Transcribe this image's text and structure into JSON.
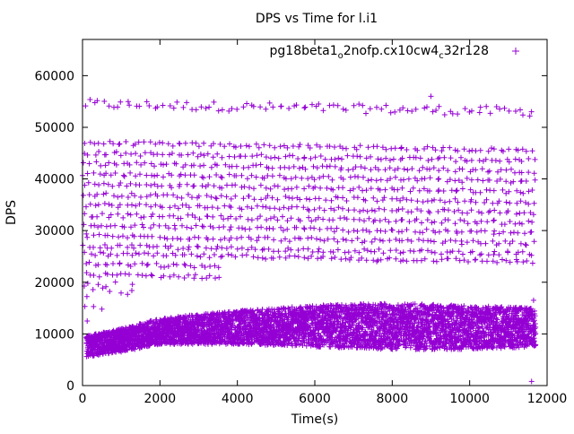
{
  "chart_data": {
    "type": "scatter",
    "title": "DPS vs Time for l.i1",
    "xlabel": "Time(s)",
    "ylabel": "DPS",
    "xlim": [
      0,
      12000
    ],
    "ylim": [
      0,
      67000
    ],
    "xticks": [
      0,
      2000,
      4000,
      6000,
      8000,
      10000,
      12000
    ],
    "yticks": [
      0,
      10000,
      20000,
      30000,
      40000,
      50000,
      60000
    ],
    "xtick_labels": [
      "0",
      "2000",
      "4000",
      "6000",
      "8000",
      "10000",
      "12000"
    ],
    "ytick_labels": [
      "0",
      "10000",
      "20000",
      "30000",
      "40000",
      "50000",
      "60000"
    ],
    "grid": false,
    "legend": {
      "placement": "top-right",
      "label_main": "pg18beta1",
      "label_sub1": "o",
      "label_mid": "2nofp.cx10cw4",
      "label_sub2": "c",
      "label_end": "32r128"
    },
    "marker": "plus",
    "series": [
      {
        "name": "pg18beta1_o2nofp.cx10cw4_c32r128",
        "color": "#9400d3",
        "x_range": [
          0,
          11700
        ],
        "bands": [
          {
            "y_center": 54500,
            "spread": 900,
            "x_range": [
              0,
              11700
            ]
          },
          {
            "y_center": 47000,
            "spread": 400,
            "x_range": [
              0,
              11700
            ]
          },
          {
            "y_center": 45000,
            "spread": 400,
            "x_range": [
              0,
              11700
            ]
          },
          {
            "y_center": 43000,
            "spread": 400,
            "x_range": [
              0,
              11700
            ]
          },
          {
            "y_center": 41000,
            "spread": 400,
            "x_range": [
              0,
              11700
            ]
          },
          {
            "y_center": 39000,
            "spread": 400,
            "x_range": [
              0,
              11700
            ]
          },
          {
            "y_center": 37000,
            "spread": 400,
            "x_range": [
              0,
              11700
            ]
          },
          {
            "y_center": 35000,
            "spread": 400,
            "x_range": [
              0,
              11700
            ]
          },
          {
            "y_center": 33000,
            "spread": 400,
            "x_range": [
              0,
              11700
            ]
          },
          {
            "y_center": 31000,
            "spread": 400,
            "x_range": [
              0,
              11700
            ]
          },
          {
            "y_center": 29000,
            "spread": 400,
            "x_range": [
              0,
              11700
            ]
          },
          {
            "y_center": 27000,
            "spread": 400,
            "x_range": [
              0,
              11700
            ]
          },
          {
            "y_center": 25500,
            "spread": 400,
            "x_range": [
              0,
              11700
            ]
          },
          {
            "y_center": 23500,
            "spread": 400,
            "x_range": [
              0,
              3600
            ]
          },
          {
            "y_center": 21500,
            "spread": 400,
            "x_range": [
              0,
              3600
            ]
          },
          {
            "y_center": 19000,
            "spread": 1500,
            "x_range": [
              0,
              1400
            ]
          },
          {
            "y_center": 16000,
            "spread": 1500,
            "x_range": [
              0,
              300
            ]
          }
        ],
        "low_band": [
          {
            "x": 0,
            "y_low": 5500,
            "y_high": 9500
          },
          {
            "x": 1000,
            "y_low": 6500,
            "y_high": 11000
          },
          {
            "x": 2000,
            "y_low": 8000,
            "y_high": 13000
          },
          {
            "x": 4000,
            "y_low": 8000,
            "y_high": 14500
          },
          {
            "x": 6000,
            "y_low": 7500,
            "y_high": 15500
          },
          {
            "x": 8000,
            "y_low": 7000,
            "y_high": 16000
          },
          {
            "x": 10000,
            "y_low": 7000,
            "y_high": 15500
          },
          {
            "x": 11700,
            "y_low": 7500,
            "y_high": 15000
          }
        ],
        "outliers": [
          {
            "x": 11600,
            "y": 800
          },
          {
            "x": 11650,
            "y": 16500
          },
          {
            "x": 9000,
            "y": 56000
          },
          {
            "x": 120,
            "y": 12500
          },
          {
            "x": 500,
            "y": 14800
          },
          {
            "x": 7600,
            "y": 24000
          }
        ]
      }
    ]
  }
}
